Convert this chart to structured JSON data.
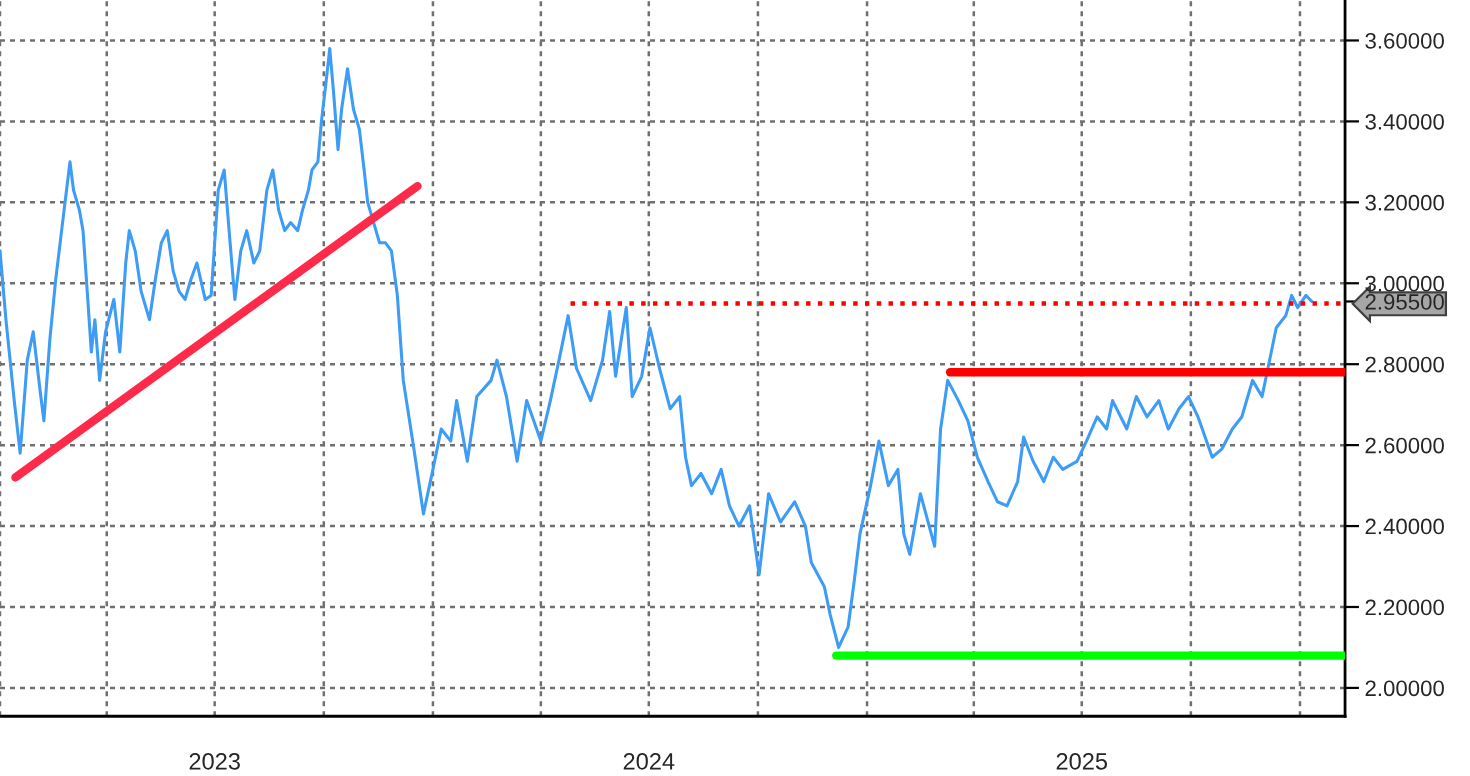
{
  "chart_data": {
    "type": "line",
    "xlim": [
      "2023-01-01",
      "2026-02-08"
    ],
    "xticks": [
      {
        "value": "2023-01-01",
        "label": null
      },
      {
        "value": "2023-04-01",
        "label": null
      },
      {
        "value": "2023-07-01",
        "label": "2023"
      },
      {
        "value": "2023-10-01",
        "label": null
      },
      {
        "value": "2024-01-01",
        "label": null
      },
      {
        "value": "2024-04-01",
        "label": null
      },
      {
        "value": "2024-07-01",
        "label": "2024"
      },
      {
        "value": "2024-10-01",
        "label": null
      },
      {
        "value": "2025-01-01",
        "label": null
      },
      {
        "value": "2025-04-01",
        "label": null
      },
      {
        "value": "2025-07-01",
        "label": "2025"
      },
      {
        "value": "2025-10-01",
        "label": null
      },
      {
        "value": "2026-01-01",
        "label": null
      }
    ],
    "ylim": [
      1.93,
      3.7
    ],
    "yticks": [
      {
        "value": 2.0,
        "label": "2.00000"
      },
      {
        "value": 2.2,
        "label": "2.20000"
      },
      {
        "value": 2.4,
        "label": "2.40000"
      },
      {
        "value": 2.6,
        "label": "2.60000"
      },
      {
        "value": 2.8,
        "label": "2.80000"
      },
      {
        "value": 2.955,
        "label": "2.95500"
      },
      {
        "value": 3.0,
        "label": "3.00000"
      },
      {
        "value": 3.2,
        "label": "3.20000"
      },
      {
        "value": 3.4,
        "label": "3.40000"
      },
      {
        "value": 3.6,
        "label": "3.60000"
      }
    ],
    "grid": true,
    "series": [
      {
        "color": "#3d9cf5",
        "x": [
          "2023-01-01",
          "2023-01-06",
          "2023-01-13",
          "2023-01-18",
          "2023-01-24",
          "2023-01-29",
          "2023-02-04",
          "2023-02-07",
          "2023-02-12",
          "2023-02-17",
          "2023-02-24",
          "2023-03-01",
          "2023-03-04",
          "2023-03-09",
          "2023-03-12",
          "2023-03-16",
          "2023-03-19",
          "2023-03-22",
          "2023-03-26",
          "2023-03-31",
          "2023-04-07",
          "2023-04-12",
          "2023-04-17",
          "2023-04-20",
          "2023-04-25",
          "2023-04-30",
          "2023-05-07",
          "2023-05-12",
          "2023-05-17",
          "2023-05-22",
          "2023-05-27",
          "2023-06-01",
          "2023-06-06",
          "2023-06-11",
          "2023-06-16",
          "2023-06-23",
          "2023-06-28",
          "2023-07-04",
          "2023-07-09",
          "2023-07-14",
          "2023-07-18",
          "2023-07-23",
          "2023-07-28",
          "2023-08-03",
          "2023-08-08",
          "2023-08-14",
          "2023-08-19",
          "2023-08-24",
          "2023-08-29",
          "2023-09-03",
          "2023-09-09",
          "2023-09-13",
          "2023-09-18",
          "2023-09-21",
          "2023-09-26",
          "2023-09-29",
          "2023-10-03",
          "2023-10-06",
          "2023-10-09",
          "2023-10-13",
          "2023-10-16",
          "2023-10-21",
          "2023-10-26",
          "2023-10-31",
          "2023-11-04",
          "2023-11-07",
          "2023-11-12",
          "2023-11-17",
          "2023-11-22",
          "2023-11-27",
          "2023-12-02",
          "2023-12-07",
          "2023-12-16",
          "2023-12-24",
          "2024-01-01",
          "2024-01-08",
          "2024-01-16",
          "2024-01-21",
          "2024-01-30",
          "2024-02-07",
          "2024-02-19",
          "2024-02-24",
          "2024-03-03",
          "2024-03-12",
          "2024-03-20",
          "2024-04-01",
          "2024-04-09",
          "2024-04-17",
          "2024-04-24",
          "2024-05-01",
          "2024-05-13",
          "2024-05-23",
          "2024-05-29",
          "2024-06-03",
          "2024-06-12",
          "2024-06-17",
          "2024-06-25",
          "2024-07-02",
          "2024-07-10",
          "2024-07-19",
          "2024-07-27",
          "2024-08-01",
          "2024-08-06",
          "2024-08-14",
          "2024-08-23",
          "2024-08-31",
          "2024-09-07",
          "2024-09-15",
          "2024-09-24",
          "2024-10-02",
          "2024-10-10",
          "2024-10-20",
          "2024-11-01",
          "2024-11-10",
          "2024-11-15",
          "2024-11-26",
          "2024-12-01",
          "2024-12-08",
          "2024-12-16",
          "2024-12-21",
          "2024-12-26",
          "2025-01-04",
          "2025-01-11",
          "2025-01-19",
          "2025-01-27",
          "2025-02-01",
          "2025-02-06",
          "2025-02-15",
          "2025-02-27",
          "2025-03-04",
          "2025-03-10",
          "2025-03-19",
          "2025-03-27",
          "2025-04-04",
          "2025-04-13",
          "2025-04-21",
          "2025-04-29",
          "2025-05-08",
          "2025-05-13",
          "2025-05-21",
          "2025-05-30",
          "2025-06-07",
          "2025-06-15",
          "2025-06-27",
          "2025-07-05",
          "2025-07-14",
          "2025-07-22",
          "2025-07-27",
          "2025-08-08",
          "2025-08-16",
          "2025-08-25",
          "2025-09-04",
          "2025-09-12",
          "2025-09-21",
          "2025-09-29",
          "2025-10-07",
          "2025-10-19",
          "2025-10-27",
          "2025-11-05",
          "2025-11-13",
          "2025-11-22",
          "2025-11-30",
          "2025-12-05",
          "2025-12-12",
          "2025-12-20",
          "2025-12-25",
          "2025-12-30",
          "2026-01-06",
          "2026-01-11"
        ],
        "values": [
          3.08,
          2.91,
          2.71,
          2.58,
          2.81,
          2.88,
          2.73,
          2.66,
          2.86,
          3.01,
          3.18,
          3.3,
          3.23,
          3.18,
          3.13,
          2.96,
          2.83,
          2.91,
          2.76,
          2.88,
          2.96,
          2.83,
          3.05,
          3.13,
          3.08,
          2.98,
          2.91,
          3.01,
          3.1,
          3.13,
          3.03,
          2.98,
          2.96,
          3.01,
          3.05,
          2.96,
          2.97,
          3.23,
          3.28,
          3.1,
          2.96,
          3.08,
          3.13,
          3.05,
          3.08,
          3.23,
          3.28,
          3.18,
          3.13,
          3.15,
          3.13,
          3.18,
          3.23,
          3.28,
          3.3,
          3.4,
          3.5,
          3.58,
          3.48,
          3.33,
          3.43,
          3.53,
          3.43,
          3.38,
          3.28,
          3.2,
          3.15,
          3.1,
          3.1,
          3.08,
          2.97,
          2.76,
          2.59,
          2.43,
          2.54,
          2.64,
          2.61,
          2.71,
          2.56,
          2.72,
          2.76,
          2.81,
          2.72,
          2.56,
          2.71,
          2.61,
          2.71,
          2.82,
          2.92,
          2.79,
          2.71,
          2.81,
          2.93,
          2.77,
          2.94,
          2.72,
          2.77,
          2.89,
          2.79,
          2.69,
          2.72,
          2.57,
          2.5,
          2.53,
          2.48,
          2.54,
          2.45,
          2.4,
          2.45,
          2.28,
          2.48,
          2.41,
          2.46,
          2.4,
          2.31,
          2.25,
          2.18,
          2.1,
          2.15,
          2.26,
          2.38,
          2.5,
          2.61,
          2.5,
          2.54,
          2.38,
          2.33,
          2.48,
          2.35,
          2.64,
          2.76,
          2.71,
          2.66,
          2.57,
          2.51,
          2.46,
          2.45,
          2.51,
          2.62,
          2.56,
          2.51,
          2.57,
          2.54,
          2.56,
          2.61,
          2.67,
          2.64,
          2.71,
          2.64,
          2.72,
          2.67,
          2.71,
          2.64,
          2.69,
          2.72,
          2.67,
          2.57,
          2.59,
          2.64,
          2.67,
          2.76,
          2.72,
          2.79,
          2.89,
          2.92,
          2.97,
          2.94,
          2.97,
          2.955
        ]
      },
      {
        "color": "#ff2a4a",
        "x": [
          "2023-01-14",
          "2023-12-19"
        ],
        "values": [
          2.52,
          3.24
        ]
      },
      {
        "color": "#ff0000",
        "line_style": "dotted",
        "x": [
          "2024-04-26",
          "2026-02-08"
        ],
        "values": [
          2.95,
          2.95
        ]
      },
      {
        "color": "#ff0000",
        "x": [
          "2025-03-12",
          "2026-02-08"
        ],
        "values": [
          2.78,
          2.78
        ]
      },
      {
        "color": "#00ff00",
        "x": [
          "2024-12-06",
          "2026-02-08"
        ],
        "values": [
          2.08,
          2.08
        ]
      }
    ]
  }
}
